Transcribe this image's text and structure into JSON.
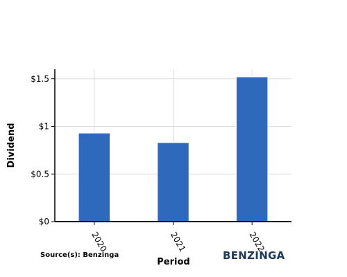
{
  "chart_data": {
    "type": "bar",
    "categories": [
      "2020",
      "2021",
      "2022"
    ],
    "values": [
      0.93,
      0.83,
      1.52
    ],
    "xlabel": "Period",
    "ylabel": "Dividend",
    "ylim": [
      0,
      1.6
    ],
    "yticks": [
      0,
      0.5,
      1,
      1.5
    ],
    "ytick_labels": [
      "$0",
      "$0.5",
      "$1",
      "$1.5"
    ],
    "grid": true,
    "bar_color": "#2f69bb"
  },
  "source": "Source(s): Benzinga",
  "brand": {
    "name": "BENZINGA",
    "color": "#1d3a5c"
  }
}
